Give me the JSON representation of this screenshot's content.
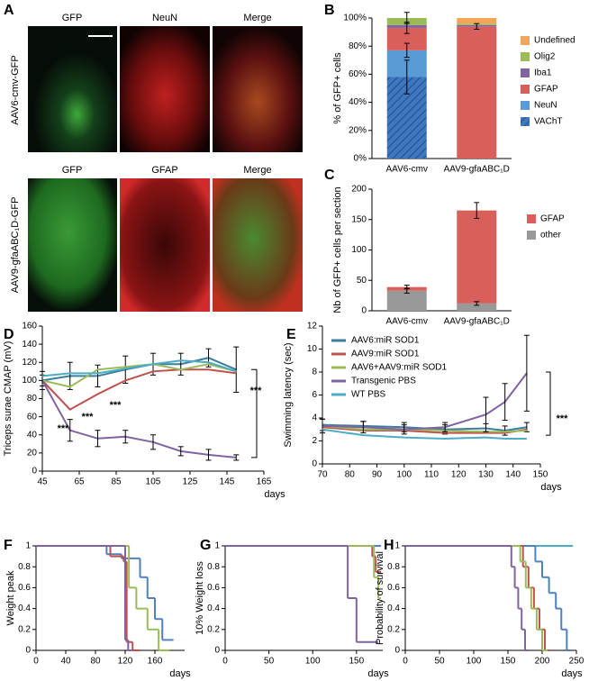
{
  "panel_a": {
    "panel": "A",
    "columns_top": [
      "GFP",
      "NeuN",
      "Merge"
    ],
    "columns_bottom": [
      "GFP",
      "GFAP",
      "Merge"
    ],
    "row_labels": [
      "AAV6-cmv-GFP",
      "AAV9-gfaABC₁D-GFP"
    ]
  },
  "chart_data": [
    {
      "panel": "B",
      "type": "bar",
      "ylabel": "% of GFP+ cells",
      "categories": [
        "AAV6-cmv",
        "AAV9-gfaABC₁D"
      ],
      "ylim": [
        0,
        100
      ],
      "yticks": [
        {
          "value": 0,
          "label": "0%"
        },
        {
          "value": 20,
          "label": "20%"
        },
        {
          "value": 40,
          "label": "40%"
        },
        {
          "value": 60,
          "label": "60%"
        },
        {
          "value": 80,
          "label": "80%"
        },
        {
          "value": 100,
          "label": "100%"
        }
      ],
      "series": [
        {
          "name": "VAChT",
          "color": "#3f78c0",
          "hatch": true,
          "values": [
            58,
            0
          ],
          "errors": [
            12,
            null
          ]
        },
        {
          "name": "NeuN",
          "color": "#5b9bd5",
          "values": [
            19,
            0
          ],
          "errors": [
            5,
            null
          ]
        },
        {
          "name": "GFAP",
          "color": "#d9605a",
          "values": [
            16,
            94
          ],
          "errors": [
            4,
            2
          ]
        },
        {
          "name": "Iba1",
          "color": "#8064a2",
          "values": [
            2,
            1
          ],
          "errors": [
            null,
            null
          ]
        },
        {
          "name": "Olig2",
          "color": "#9bbb59",
          "values": [
            5,
            1
          ],
          "errors": [
            4,
            null
          ]
        },
        {
          "name": "Undefined",
          "color": "#f5a55a",
          "values": [
            0,
            4
          ],
          "errors": [
            null,
            null
          ]
        }
      ]
    },
    {
      "panel": "C",
      "type": "bar",
      "ylabel": "Nb of GFP+ cells per section",
      "categories": [
        "AAV6-cmv",
        "AAV9-gfaABC₁D"
      ],
      "ylim": [
        0,
        200
      ],
      "yticks": [
        0,
        50,
        100,
        150,
        200
      ],
      "series": [
        {
          "name": "other",
          "color": "#999999",
          "values": [
            33,
            12
          ],
          "errors": [
            4,
            3
          ]
        },
        {
          "name": "GFAP",
          "color": "#d9605a",
          "values": [
            6,
            153
          ],
          "errors": [
            3,
            13
          ]
        }
      ]
    },
    {
      "panel": "D",
      "type": "line",
      "ylabel": "Triceps surae CMAP (mV)",
      "xlabel": "days",
      "xlim": [
        45,
        165
      ],
      "xticks": [
        45,
        65,
        85,
        105,
        125,
        145,
        165
      ],
      "ylim": [
        0,
        160
      ],
      "yticks": [
        0,
        20,
        40,
        60,
        80,
        100,
        120,
        140,
        160
      ],
      "x": [
        45,
        60,
        75,
        90,
        105,
        120,
        135,
        150
      ],
      "series": [
        {
          "color": "#3c7d9e",
          "values": [
            100,
            105,
            105,
            112,
            118,
            118,
            125,
            112
          ],
          "errors": [
            6,
            15,
            12,
            15,
            12,
            12,
            10,
            25
          ]
        },
        {
          "color": "#c0504d",
          "values": [
            100,
            68,
            85,
            100,
            110,
            112,
            112,
            108
          ],
          "errors": [
            null,
            null,
            null,
            null,
            null,
            null,
            null,
            null
          ]
        },
        {
          "color": "#9bbb59",
          "values": [
            100,
            93,
            112,
            115,
            118,
            112,
            118,
            110
          ],
          "errors": [
            null,
            null,
            null,
            null,
            null,
            null,
            null,
            null
          ]
        },
        {
          "color": "#8064a2",
          "values": [
            100,
            45,
            36,
            38,
            32,
            22,
            18,
            15
          ],
          "errors": [
            10,
            12,
            9,
            7,
            8,
            5,
            6,
            3
          ]
        },
        {
          "color": "#4bacc6",
          "values": [
            105,
            108,
            108,
            113,
            118,
            122,
            120,
            110
          ],
          "errors": [
            null,
            null,
            null,
            null,
            null,
            null,
            null,
            null
          ]
        }
      ],
      "annotations": [
        "***",
        "***",
        "***",
        "***"
      ]
    },
    {
      "panel": "E",
      "type": "line",
      "ylabel": "Swimming latency (sec)",
      "xlabel": "days",
      "xlim": [
        70,
        150
      ],
      "xticks": [
        70,
        80,
        90,
        100,
        110,
        120,
        130,
        140,
        150
      ],
      "ylim": [
        0,
        12
      ],
      "yticks": [
        0,
        2,
        4,
        6,
        8,
        10,
        12
      ],
      "x": [
        70,
        85,
        100,
        115,
        130,
        137,
        145
      ],
      "series": [
        {
          "name": "AAV6:miR SOD1",
          "color": "#3c7d9e",
          "values": [
            3.4,
            3.3,
            3.2,
            3.0,
            3.1,
            2.9,
            3.2
          ],
          "errors": [
            0.5,
            0.4,
            0.4,
            0.4,
            0.4,
            0.4,
            0.4
          ]
        },
        {
          "name": "AAV9:miR SOD1",
          "color": "#c0504d",
          "values": [
            3.2,
            2.9,
            2.9,
            2.7,
            2.7,
            2.7,
            3.0
          ],
          "errors": [
            null,
            null,
            null,
            null,
            null,
            null,
            null
          ]
        },
        {
          "name": "AAV6+AAV9:miR SOD1",
          "color": "#9bbb59",
          "values": [
            3.3,
            3.0,
            3.0,
            2.9,
            2.8,
            2.8,
            2.9
          ],
          "errors": [
            null,
            null,
            null,
            null,
            null,
            null,
            null
          ]
        },
        {
          "name": "Transgenic PBS",
          "color": "#8064a2",
          "values": [
            3.3,
            3.2,
            3.0,
            3.2,
            4.3,
            5.4,
            7.9
          ],
          "errors": [
            0.6,
            0.5,
            0.4,
            0.4,
            1.5,
            1.6,
            3.3
          ]
        },
        {
          "name": "WT PBS",
          "color": "#4bacc6",
          "values": [
            3.0,
            2.5,
            2.3,
            2.2,
            2.3,
            2.2,
            2.2
          ],
          "errors": [
            null,
            null,
            null,
            null,
            null,
            null,
            null
          ]
        }
      ],
      "annotations": [
        "***"
      ]
    },
    {
      "panel": "F",
      "type": "step",
      "ylabel": "Weight peak",
      "xlabel": "days",
      "xlim": [
        0,
        200
      ],
      "xticks": [
        0,
        40,
        80,
        120,
        160
      ],
      "ylim": [
        0,
        1
      ],
      "yticks": [
        0,
        0.2,
        0.4,
        0.6,
        0.8,
        1
      ],
      "series": [
        {
          "color": "#4f81bd",
          "x": [
            0,
            95,
            115,
            140,
            150,
            160,
            170,
            185
          ],
          "values": [
            1,
            0.92,
            0.88,
            0.7,
            0.5,
            0.3,
            0.1,
            0.1
          ]
        },
        {
          "color": "#c0504d",
          "x": [
            0,
            100,
            118,
            122,
            130,
            140
          ],
          "values": [
            1,
            0.9,
            0.85,
            0.08,
            0,
            0
          ]
        },
        {
          "color": "#9bbb59",
          "x": [
            0,
            125,
            135,
            150,
            165,
            180
          ],
          "values": [
            1,
            0.6,
            0.4,
            0.2,
            0,
            0
          ]
        },
        {
          "color": "#8064a2",
          "x": [
            0,
            120,
            124,
            130
          ],
          "values": [
            1,
            0.1,
            0,
            0
          ]
        }
      ]
    },
    {
      "panel": "G",
      "type": "step",
      "ylabel": "10% Weight loss",
      "xlabel": "days",
      "xlim": [
        0,
        180
      ],
      "xticks": [
        0,
        50,
        100,
        150
      ],
      "ylim": [
        0,
        1
      ],
      "yticks": [
        0,
        0.2,
        0.4,
        0.6,
        0.8,
        1
      ],
      "series": [
        {
          "color": "#4f81bd",
          "x": [
            0,
            178
          ],
          "values": [
            1,
            1
          ]
        },
        {
          "color": "#c0504d",
          "x": [
            0,
            168,
            172,
            178
          ],
          "values": [
            1,
            0.9,
            0.75,
            0.75
          ]
        },
        {
          "color": "#9bbb59",
          "x": [
            0,
            170,
            175,
            178
          ],
          "values": [
            1,
            0.7,
            0.5,
            0.5
          ]
        },
        {
          "color": "#8064a2",
          "x": [
            0,
            140,
            150,
            175
          ],
          "values": [
            1,
            0.5,
            0.08,
            0.08
          ]
        }
      ]
    },
    {
      "panel": "H",
      "type": "step",
      "ylabel": "Probability of survival",
      "xlabel": "days",
      "xlim": [
        0,
        250
      ],
      "xticks": [
        0,
        50,
        100,
        150,
        200,
        250
      ],
      "ylim": [
        0,
        1
      ],
      "yticks": [
        0,
        0.2,
        0.4,
        0.6,
        0.8,
        1
      ],
      "series": [
        {
          "color": "#4bacc6",
          "x": [
            0,
            245
          ],
          "values": [
            1,
            1
          ]
        },
        {
          "color": "#4f81bd",
          "x": [
            0,
            190,
            200,
            210,
            220,
            228,
            236,
            242
          ],
          "values": [
            1,
            0.85,
            0.7,
            0.55,
            0.4,
            0.2,
            0,
            0
          ]
        },
        {
          "color": "#c0504d",
          "x": [
            0,
            172,
            180,
            188,
            196,
            204,
            210
          ],
          "values": [
            1,
            0.8,
            0.6,
            0.4,
            0.2,
            0,
            0
          ]
        },
        {
          "color": "#9bbb59",
          "x": [
            0,
            168,
            176,
            184,
            192,
            200,
            208
          ],
          "values": [
            1,
            0.85,
            0.6,
            0.4,
            0.2,
            0,
            0
          ]
        },
        {
          "color": "#8064a2",
          "x": [
            0,
            155,
            160,
            165,
            170,
            175,
            180
          ],
          "values": [
            1,
            0.8,
            0.6,
            0.4,
            0.2,
            0,
            0
          ]
        }
      ]
    }
  ]
}
